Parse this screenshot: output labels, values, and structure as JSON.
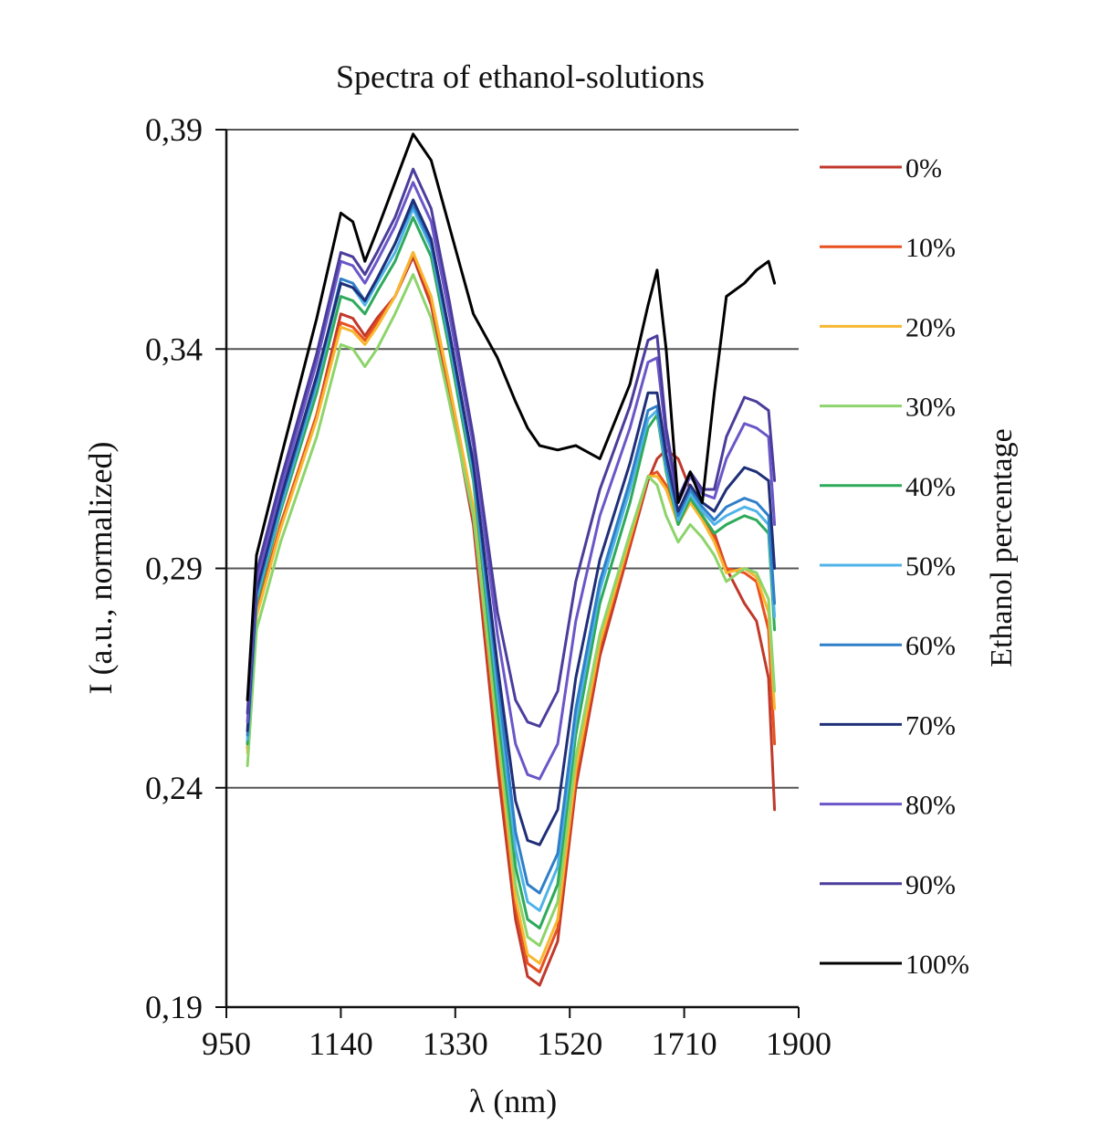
{
  "chart_data": {
    "type": "line",
    "title": "Spectra of ethanol-solutions",
    "xlabel": "λ (nm)",
    "ylabel": "I (a.u., normalized)",
    "legend_title": "Ethanol percentage",
    "legend_position": "right",
    "grid": "horizontal",
    "xlim": [
      950,
      1900
    ],
    "ylim": [
      0.19,
      0.39
    ],
    "x_ticks": [
      950,
      1140,
      1330,
      1520,
      1710,
      1900
    ],
    "x_tick_labels": [
      "950",
      "1140",
      "1330",
      "1520",
      "1710",
      "1900"
    ],
    "y_ticks": [
      0.19,
      0.24,
      0.29,
      0.34,
      0.39
    ],
    "y_tick_labels": [
      "0,19",
      "0,24",
      "0,29",
      "0,34",
      "0,39"
    ],
    "x": [
      985,
      1000,
      1040,
      1100,
      1140,
      1160,
      1180,
      1200,
      1230,
      1260,
      1290,
      1320,
      1360,
      1400,
      1430,
      1450,
      1470,
      1500,
      1530,
      1570,
      1620,
      1650,
      1665,
      1680,
      1700,
      1720,
      1740,
      1760,
      1780,
      1810,
      1830,
      1850,
      1860
    ],
    "series": [
      {
        "name": "0%",
        "color": "#c0392b",
        "values": [
          0.25,
          0.28,
          0.3,
          0.325,
          0.348,
          0.347,
          0.343,
          0.347,
          0.352,
          0.361,
          0.35,
          0.33,
          0.3,
          0.245,
          0.21,
          0.197,
          0.195,
          0.205,
          0.24,
          0.27,
          0.295,
          0.31,
          0.315,
          0.317,
          0.315,
          0.308,
          0.302,
          0.298,
          0.29,
          0.282,
          0.278,
          0.265,
          0.235
        ]
      },
      {
        "name": "10%",
        "color": "#e8501f",
        "values": [
          0.249,
          0.28,
          0.3,
          0.325,
          0.346,
          0.345,
          0.342,
          0.346,
          0.352,
          0.362,
          0.351,
          0.331,
          0.302,
          0.25,
          0.213,
          0.2,
          0.198,
          0.208,
          0.242,
          0.272,
          0.296,
          0.311,
          0.312,
          0.309,
          0.3,
          0.306,
          0.302,
          0.297,
          0.29,
          0.289,
          0.287,
          0.276,
          0.25
        ]
      },
      {
        "name": "20%",
        "color": "#f7b731",
        "values": [
          0.248,
          0.279,
          0.299,
          0.324,
          0.345,
          0.344,
          0.341,
          0.345,
          0.352,
          0.362,
          0.352,
          0.332,
          0.304,
          0.252,
          0.215,
          0.202,
          0.2,
          0.21,
          0.244,
          0.273,
          0.297,
          0.311,
          0.311,
          0.308,
          0.3,
          0.305,
          0.301,
          0.296,
          0.289,
          0.29,
          0.288,
          0.28,
          0.258
        ]
      },
      {
        "name": "30%",
        "color": "#8dd46b",
        "values": [
          0.245,
          0.276,
          0.296,
          0.32,
          0.341,
          0.34,
          0.336,
          0.34,
          0.348,
          0.357,
          0.347,
          0.328,
          0.302,
          0.254,
          0.218,
          0.206,
          0.204,
          0.214,
          0.247,
          0.275,
          0.298,
          0.311,
          0.309,
          0.302,
          0.296,
          0.3,
          0.297,
          0.293,
          0.287,
          0.29,
          0.289,
          0.283,
          0.262
        ]
      },
      {
        "name": "40%",
        "color": "#2eaa5a",
        "values": [
          0.25,
          0.282,
          0.303,
          0.33,
          0.352,
          0.351,
          0.348,
          0.353,
          0.36,
          0.37,
          0.361,
          0.34,
          0.31,
          0.258,
          0.222,
          0.21,
          0.208,
          0.218,
          0.252,
          0.282,
          0.305,
          0.322,
          0.325,
          0.312,
          0.3,
          0.306,
          0.302,
          0.298,
          0.3,
          0.302,
          0.301,
          0.298,
          0.276
        ]
      },
      {
        "name": "50%",
        "color": "#4fb3e8",
        "values": [
          0.251,
          0.283,
          0.304,
          0.332,
          0.355,
          0.354,
          0.35,
          0.355,
          0.362,
          0.372,
          0.363,
          0.342,
          0.312,
          0.262,
          0.226,
          0.214,
          0.212,
          0.222,
          0.255,
          0.285,
          0.308,
          0.324,
          0.326,
          0.313,
          0.301,
          0.307,
          0.303,
          0.3,
          0.302,
          0.304,
          0.303,
          0.3,
          0.279
        ]
      },
      {
        "name": "60%",
        "color": "#2f7fc8",
        "values": [
          0.252,
          0.284,
          0.305,
          0.333,
          0.356,
          0.355,
          0.351,
          0.356,
          0.364,
          0.373,
          0.364,
          0.343,
          0.313,
          0.265,
          0.23,
          0.218,
          0.216,
          0.225,
          0.258,
          0.287,
          0.31,
          0.326,
          0.327,
          0.314,
          0.302,
          0.308,
          0.304,
          0.301,
          0.304,
          0.306,
          0.305,
          0.302,
          0.282
        ]
      },
      {
        "name": "70%",
        "color": "#1f2f78",
        "values": [
          0.253,
          0.285,
          0.306,
          0.334,
          0.355,
          0.354,
          0.351,
          0.356,
          0.364,
          0.374,
          0.365,
          0.344,
          0.314,
          0.268,
          0.237,
          0.228,
          0.227,
          0.235,
          0.265,
          0.292,
          0.314,
          0.33,
          0.33,
          0.316,
          0.303,
          0.309,
          0.305,
          0.303,
          0.308,
          0.313,
          0.312,
          0.31,
          0.29
        ]
      },
      {
        "name": "80%",
        "color": "#6b56c8",
        "values": [
          0.255,
          0.287,
          0.308,
          0.337,
          0.36,
          0.359,
          0.355,
          0.36,
          0.368,
          0.378,
          0.369,
          0.348,
          0.318,
          0.275,
          0.25,
          0.243,
          0.242,
          0.25,
          0.278,
          0.302,
          0.322,
          0.337,
          0.338,
          0.32,
          0.305,
          0.311,
          0.307,
          0.306,
          0.315,
          0.323,
          0.322,
          0.32,
          0.3
        ]
      },
      {
        "name": "90%",
        "color": "#4a3d9c",
        "values": [
          0.257,
          0.289,
          0.31,
          0.339,
          0.362,
          0.361,
          0.357,
          0.362,
          0.37,
          0.381,
          0.372,
          0.351,
          0.32,
          0.28,
          0.26,
          0.255,
          0.254,
          0.262,
          0.287,
          0.308,
          0.327,
          0.342,
          0.343,
          0.322,
          0.306,
          0.312,
          0.308,
          0.308,
          0.32,
          0.329,
          0.328,
          0.326,
          0.31
        ]
      },
      {
        "name": "100%",
        "color": "#000000",
        "values": [
          0.26,
          0.293,
          0.315,
          0.347,
          0.371,
          0.369,
          0.36,
          0.367,
          0.378,
          0.389,
          0.383,
          0.368,
          0.348,
          0.338,
          0.328,
          0.322,
          0.318,
          0.317,
          0.318,
          0.315,
          0.332,
          0.35,
          0.358,
          0.34,
          0.305,
          0.312,
          0.305,
          0.33,
          0.352,
          0.355,
          0.358,
          0.36,
          0.355
        ]
      }
    ]
  }
}
